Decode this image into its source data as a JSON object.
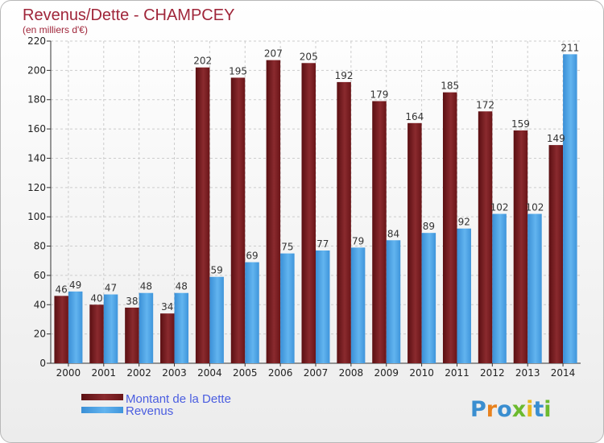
{
  "chart_data": {
    "type": "bar",
    "title": "Revenus/Dette - CHAMPCEY",
    "subtitle": "(en milliers d'€)",
    "categories": [
      "2000",
      "2001",
      "2002",
      "2003",
      "2004",
      "2005",
      "2006",
      "2007",
      "2008",
      "2009",
      "2010",
      "2011",
      "2012",
      "2013",
      "2014"
    ],
    "series": [
      {
        "name": "Montant de la Dette",
        "color": "#7a1b1f",
        "values": [
          46,
          40,
          38,
          34,
          202,
          195,
          207,
          205,
          192,
          179,
          164,
          185,
          172,
          159,
          149
        ]
      },
      {
        "name": "Revenus",
        "color": "#4aa3e6",
        "values": [
          49,
          47,
          48,
          48,
          59,
          69,
          75,
          77,
          79,
          84,
          89,
          92,
          102,
          102,
          211
        ]
      }
    ],
    "ylim": [
      0,
      220
    ],
    "yticks": [
      0,
      20,
      40,
      60,
      80,
      100,
      120,
      140,
      160,
      180,
      200,
      220
    ],
    "grid": true,
    "legend_position": "bottom-left"
  },
  "brand": {
    "letters": [
      "P",
      "r",
      "o",
      "x",
      "i",
      "t",
      "i"
    ],
    "colors": [
      "#3a8ed0",
      "#e8821e",
      "#3a8ed0",
      "#6cba2e",
      "#e8b81e",
      "#3a8ed0",
      "#6cba2e"
    ]
  }
}
